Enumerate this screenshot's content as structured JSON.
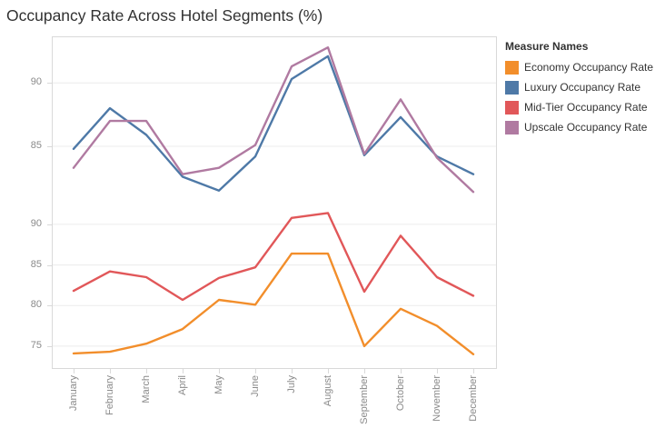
{
  "title": "Occupancy Rate Across Hotel Segments (%)",
  "legend": {
    "title": "Measure Names",
    "entries": [
      {
        "label": "Economy Occupancy Rate",
        "color": "#f28e2b"
      },
      {
        "label": "Luxury Occupancy Rate",
        "color": "#4e79a7"
      },
      {
        "label": "Mid-Tier Occupancy Rate",
        "color": "#e15759"
      },
      {
        "label": "Upscale Occupancy Rate",
        "color": "#b07aa1"
      }
    ]
  },
  "chart_data": {
    "type": "line",
    "title": "Occupancy Rate Across Hotel Segments (%)",
    "xlabel": "",
    "ylabel": "",
    "grid": true,
    "legend_position": "right",
    "legend_title": "Measure Names",
    "x_tick_rotation": -90,
    "categories": [
      "January",
      "February",
      "March",
      "April",
      "May",
      "June",
      "July",
      "August",
      "September",
      "October",
      "November",
      "December"
    ],
    "panels": [
      {
        "id": "top",
        "ylim": [
          80.7,
          93.6
        ],
        "yticks": [
          85,
          90
        ],
        "series": [
          {
            "name": "Luxury Occupancy Rate",
            "color": "#4e79a7",
            "values": [
              84.8,
              88.0,
              85.9,
              82.6,
              81.5,
              84.2,
              90.3,
              92.1,
              84.3,
              87.3,
              84.2,
              82.8
            ]
          },
          {
            "name": "Upscale Occupancy Rate",
            "color": "#b07aa1",
            "values": [
              83.3,
              87.0,
              87.0,
              82.8,
              83.3,
              85.1,
              91.3,
              92.8,
              84.4,
              88.7,
              84.1,
              81.4
            ]
          }
        ]
      },
      {
        "id": "bottom",
        "ylim": [
          72.3,
          92.9
        ],
        "yticks": [
          75,
          80,
          85,
          90
        ],
        "series": [
          {
            "name": "Economy Occupancy Rate",
            "color": "#f28e2b",
            "values": [
              74.1,
              74.3,
              75.3,
              77.1,
              80.7,
              80.1,
              86.4,
              86.4,
              75.0,
              79.6,
              77.5,
              74.0
            ]
          },
          {
            "name": "Mid-Tier Occupancy Rate",
            "color": "#e15759",
            "values": [
              81.8,
              84.2,
              83.5,
              80.7,
              83.4,
              84.7,
              90.8,
              91.4,
              81.7,
              88.6,
              83.5,
              81.2
            ]
          }
        ]
      }
    ],
    "style": {
      "line_width": 2.4,
      "grid_color": "#ececec",
      "border_color": "#d9d9d9",
      "tick_label_color": "#8a8a8a",
      "title_color": "#323232"
    }
  }
}
